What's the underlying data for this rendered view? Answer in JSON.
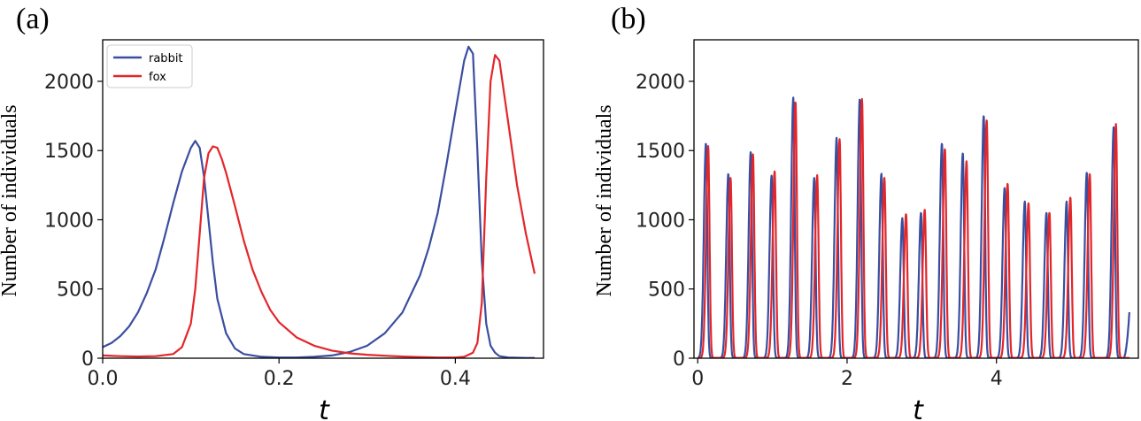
{
  "colors": {
    "rabbit": "#3a4ea0",
    "fox": "#e3262a"
  },
  "chart_data": [
    {
      "panel_label": "(a)",
      "type": "line",
      "xlabel": "t",
      "ylabel": "Number of individuals",
      "xlim": [
        0.0,
        0.5
      ],
      "ylim": [
        0,
        2300
      ],
      "xticks": [
        0.0,
        0.2,
        0.4
      ],
      "xtick_labels": [
        "0.0",
        "0.2",
        "0.4"
      ],
      "yticks": [
        0,
        500,
        1000,
        1500,
        2000
      ],
      "ytick_labels": [
        "0",
        "500",
        "1000",
        "1500",
        "2000"
      ],
      "legend": {
        "position": "upper-left",
        "entries": [
          "rabbit",
          "fox"
        ]
      },
      "series": [
        {
          "name": "rabbit",
          "x": [
            0.0,
            0.01,
            0.02,
            0.03,
            0.04,
            0.05,
            0.06,
            0.07,
            0.08,
            0.09,
            0.1,
            0.105,
            0.11,
            0.115,
            0.12,
            0.125,
            0.13,
            0.14,
            0.15,
            0.16,
            0.18,
            0.2,
            0.22,
            0.24,
            0.26,
            0.28,
            0.3,
            0.32,
            0.34,
            0.36,
            0.37,
            0.38,
            0.39,
            0.4,
            0.41,
            0.415,
            0.42,
            0.425,
            0.43,
            0.435,
            0.44,
            0.445,
            0.45,
            0.46,
            0.47,
            0.48,
            0.49
          ],
          "y": [
            80,
            110,
            160,
            230,
            330,
            470,
            640,
            870,
            1120,
            1350,
            1520,
            1570,
            1520,
            1310,
            1000,
            690,
            430,
            180,
            70,
            30,
            10,
            5,
            5,
            10,
            20,
            45,
            90,
            180,
            330,
            600,
            800,
            1050,
            1400,
            1780,
            2150,
            2250,
            2200,
            1500,
            700,
            250,
            90,
            40,
            15,
            5,
            3,
            2,
            2
          ]
        },
        {
          "name": "fox",
          "x": [
            0.0,
            0.02,
            0.04,
            0.06,
            0.08,
            0.09,
            0.1,
            0.105,
            0.11,
            0.115,
            0.12,
            0.125,
            0.13,
            0.135,
            0.14,
            0.15,
            0.16,
            0.17,
            0.18,
            0.19,
            0.2,
            0.22,
            0.24,
            0.26,
            0.28,
            0.3,
            0.32,
            0.34,
            0.36,
            0.38,
            0.4,
            0.41,
            0.42,
            0.425,
            0.43,
            0.435,
            0.44,
            0.445,
            0.45,
            0.46,
            0.47,
            0.48,
            0.49
          ],
          "y": [
            20,
            15,
            12,
            15,
            30,
            80,
            250,
            500,
            900,
            1300,
            1480,
            1530,
            1520,
            1440,
            1340,
            1100,
            850,
            640,
            480,
            350,
            260,
            150,
            90,
            55,
            35,
            25,
            18,
            12,
            8,
            5,
            5,
            10,
            40,
            110,
            400,
            1300,
            2000,
            2190,
            2150,
            1700,
            1250,
            900,
            610
          ]
        }
      ]
    },
    {
      "panel_label": "(b)",
      "type": "line",
      "xlabel": "t",
      "ylabel": "Number of individuals",
      "xlim": [
        -0.05,
        5.9
      ],
      "ylim": [
        0,
        2300
      ],
      "xticks": [
        0,
        2,
        4
      ],
      "xtick_labels": [
        "0",
        "2",
        "4"
      ],
      "yticks": [
        0,
        500,
        1000,
        1500,
        2000
      ],
      "ytick_labels": [
        "0",
        "500",
        "1000",
        "1500",
        "2000"
      ],
      "series": [
        {
          "name": "rabbit",
          "peaks_x": [
            0.11,
            0.41,
            0.71,
            0.99,
            1.28,
            1.56,
            1.86,
            2.17,
            2.46,
            2.74,
            2.99,
            3.27,
            3.55,
            3.83,
            4.11,
            4.38,
            4.67,
            4.94,
            5.21,
            5.57
          ],
          "peaks_y": [
            1550,
            1330,
            1490,
            1320,
            1880,
            1300,
            1590,
            1870,
            1330,
            1010,
            1050,
            1550,
            1480,
            1750,
            1230,
            1130,
            1050,
            1130,
            1340,
            1670
          ],
          "end": {
            "x": 5.78,
            "y": 330
          }
        },
        {
          "name": "fox",
          "peaks_x": [
            0.14,
            0.44,
            0.74,
            1.03,
            1.31,
            1.6,
            1.9,
            2.2,
            2.5,
            2.79,
            3.04,
            3.31,
            3.6,
            3.87,
            4.15,
            4.43,
            4.71,
            4.99,
            5.25,
            5.6
          ],
          "peaks_y": [
            1530,
            1300,
            1470,
            1350,
            1850,
            1320,
            1580,
            1870,
            1300,
            1040,
            1070,
            1510,
            1420,
            1720,
            1260,
            1120,
            1050,
            1160,
            1330,
            1690
          ]
        }
      ]
    }
  ]
}
